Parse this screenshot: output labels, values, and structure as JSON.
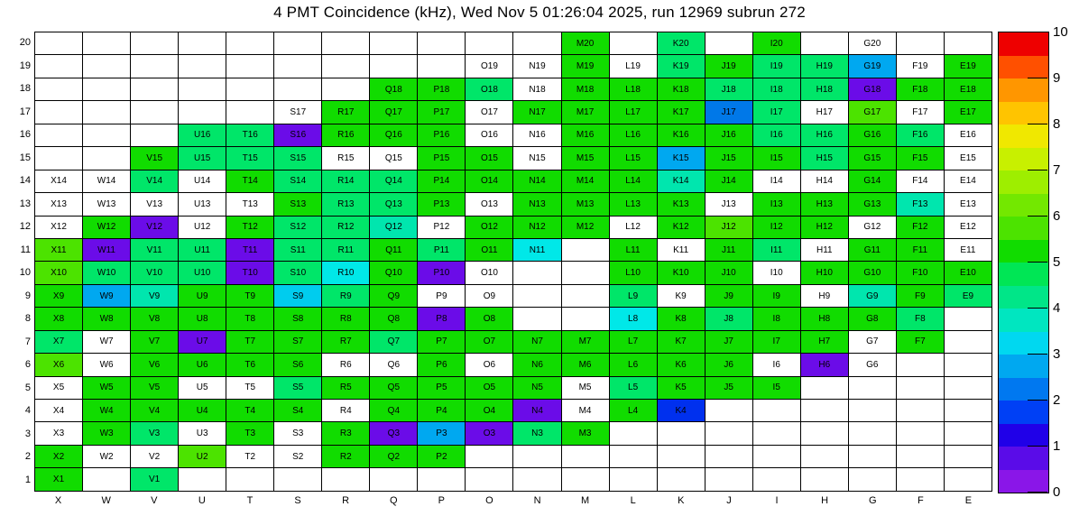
{
  "title": "4 PMT Coincidence (kHz), Wed Nov  5 01:26:04 2025, run 12969 subrun 272",
  "chart_data": {
    "type": "heatmap",
    "title": "4 PMT Coincidence (kHz), Wed Nov  5 01:26:04 2025, run 12969 subrun 272",
    "x_axis_labels": [
      "X",
      "W",
      "V",
      "U",
      "T",
      "S",
      "R",
      "Q",
      "P",
      "O",
      "N",
      "M",
      "L",
      "K",
      "J",
      "I",
      "H",
      "G",
      "F",
      "E"
    ],
    "y_axis_labels": [
      20,
      19,
      18,
      17,
      16,
      15,
      14,
      13,
      12,
      11,
      10,
      9,
      8,
      7,
      6,
      5,
      4,
      3,
      2,
      1
    ],
    "colorbar": {
      "min": 0,
      "max": 10,
      "ticks": [
        10,
        9,
        8,
        7,
        6,
        5,
        4,
        3,
        2,
        1,
        0
      ],
      "palette_bottom_to_top": [
        "#8A16E8",
        "#5A0CE8",
        "#2000E8",
        "#0040F5",
        "#0078F0",
        "#00A8F0",
        "#00D8F0",
        "#00E6C0",
        "#00E688",
        "#00E655",
        "#11DC00",
        "#4CE300",
        "#73E800",
        "#9EEE00",
        "#C8F000",
        "#F0E800",
        "#FFC400",
        "#FF9600",
        "#FF5000",
        "#EE0000"
      ]
    },
    "color_classes": {
      "g": {
        "hex": "#11DC00",
        "approx_value": 5.2
      },
      "Y": {
        "hex": "#4CE300",
        "approx_value": 5.8
      },
      "s": {
        "hex": "#00E669",
        "approx_value": 4.3
      },
      "t": {
        "hex": "#00E6AE",
        "approx_value": 3.8
      },
      "c": {
        "hex": "#00E8E8",
        "approx_value": 3.2
      },
      "C": {
        "hex": "#00CCEE",
        "approx_value": 3.0
      },
      "L": {
        "hex": "#00A8F0",
        "approx_value": 2.7
      },
      "B": {
        "hex": "#0078E8",
        "approx_value": 2.3
      },
      "D": {
        "hex": "#0030EE",
        "approx_value": 1.5
      },
      "P": {
        "hex": "#6B0CE8",
        "approx_value": 0.3
      },
      "w": {
        "hex": "#FFFFFF",
        "approx_value": 0
      },
      ".": {
        "hex": "#FFFFFF",
        "approx_value": null
      }
    },
    "cell_code_note": "codes key into color_classes; '.' = empty unlabeled cell, 'w' = labeled white cell (~0 kHz)",
    "cells": [
      [
        ".",
        ".",
        ".",
        ".",
        ".",
        ".",
        ".",
        ".",
        ".",
        ".",
        ".",
        "g",
        ".",
        "s",
        ".",
        "g",
        ".",
        "w",
        ".",
        "."
      ],
      [
        ".",
        ".",
        ".",
        ".",
        ".",
        ".",
        ".",
        ".",
        ".",
        "w",
        "w",
        "g",
        "w",
        "s",
        "g",
        "s",
        "s",
        "L",
        "w",
        "g"
      ],
      [
        ".",
        ".",
        ".",
        ".",
        ".",
        ".",
        ".",
        "g",
        "g",
        "s",
        "w",
        "g",
        "g",
        "g",
        "s",
        "s",
        "s",
        "P",
        "g",
        "g"
      ],
      [
        ".",
        ".",
        ".",
        ".",
        ".",
        "w",
        "g",
        "g",
        "g",
        "w",
        "g",
        "g",
        "g",
        "g",
        "B",
        "s",
        "w",
        "Y",
        "w",
        "g"
      ],
      [
        ".",
        ".",
        ".",
        "s",
        "s",
        "P",
        "g",
        "g",
        "g",
        "w",
        "w",
        "g",
        "g",
        "g",
        "g",
        "s",
        "s",
        "g",
        "s",
        "w"
      ],
      [
        ".",
        ".",
        "g",
        "s",
        "s",
        "s",
        "w",
        "w",
        "g",
        "g",
        "w",
        "g",
        "g",
        "L",
        "g",
        "g",
        "s",
        "g",
        "g",
        "w"
      ],
      [
        "w",
        "w",
        "s",
        "w",
        "g",
        "s",
        "s",
        "s",
        "g",
        "g",
        "g",
        "g",
        "g",
        "t",
        "g",
        "w",
        "w",
        "g",
        "w",
        "w"
      ],
      [
        "w",
        "w",
        "w",
        "w",
        "w",
        "g",
        "s",
        "s",
        "g",
        "w",
        "g",
        "g",
        "g",
        "g",
        "w",
        "g",
        "g",
        "g",
        "t",
        "w"
      ],
      [
        "w",
        "g",
        "P",
        "w",
        "g",
        "s",
        "s",
        "t",
        "w",
        "g",
        "g",
        "g",
        "w",
        "g",
        "Y",
        "g",
        "g",
        "w",
        "g",
        "w"
      ],
      [
        "Y",
        "P",
        "s",
        "s",
        "P",
        "s",
        "s",
        "g",
        "s",
        "g",
        "c",
        ".",
        "g",
        "w",
        "g",
        "s",
        "w",
        "g",
        "g",
        "w"
      ],
      [
        "Y",
        "s",
        "s",
        "s",
        "P",
        "s",
        "c",
        "g",
        "P",
        "w",
        ".",
        ".",
        "g",
        "g",
        "g",
        "w",
        "g",
        "g",
        "g",
        "g"
      ],
      [
        "g",
        "L",
        "t",
        "g",
        "g",
        "C",
        "s",
        "g",
        "w",
        "w",
        ".",
        ".",
        "s",
        "w",
        "g",
        "g",
        "w",
        "t",
        "g",
        "s"
      ],
      [
        "g",
        "g",
        "g",
        "g",
        "g",
        "g",
        "g",
        "g",
        "P",
        "g",
        ".",
        ".",
        "c",
        "g",
        "s",
        "g",
        "g",
        "g",
        "s",
        "."
      ],
      [
        "s",
        "w",
        "g",
        "P",
        "g",
        "g",
        "g",
        "s",
        "g",
        "g",
        "g",
        "g",
        "g",
        "g",
        "g",
        "g",
        "g",
        "w",
        "g",
        "."
      ],
      [
        "Y",
        "w",
        "g",
        "g",
        "g",
        "g",
        "w",
        "w",
        "g",
        "w",
        "g",
        "g",
        "g",
        "g",
        "g",
        "w",
        "P",
        "w",
        ".",
        "."
      ],
      [
        "w",
        "g",
        "g",
        "w",
        "w",
        "s",
        "g",
        "g",
        "g",
        "g",
        "g",
        "w",
        "s",
        "g",
        "g",
        "g",
        ".",
        ".",
        ".",
        "."
      ],
      [
        "w",
        "g",
        "g",
        "g",
        "g",
        "g",
        "w",
        "g",
        "g",
        "g",
        "P",
        "w",
        "g",
        "D",
        ".",
        ".",
        ".",
        ".",
        ".",
        "."
      ],
      [
        "w",
        "g",
        "s",
        "w",
        "g",
        "w",
        "g",
        "P",
        "L",
        "P",
        "s",
        "g",
        ".",
        ".",
        ".",
        ".",
        ".",
        ".",
        ".",
        "."
      ],
      [
        "g",
        "w",
        "w",
        "Y",
        "w",
        "w",
        "g",
        "g",
        "g",
        ".",
        ".",
        ".",
        ".",
        ".",
        ".",
        ".",
        ".",
        ".",
        ".",
        "."
      ],
      [
        "g",
        ".",
        "s",
        ".",
        ".",
        ".",
        ".",
        ".",
        ".",
        ".",
        ".",
        ".",
        ".",
        ".",
        ".",
        ".",
        ".",
        ".",
        ".",
        "."
      ]
    ]
  }
}
